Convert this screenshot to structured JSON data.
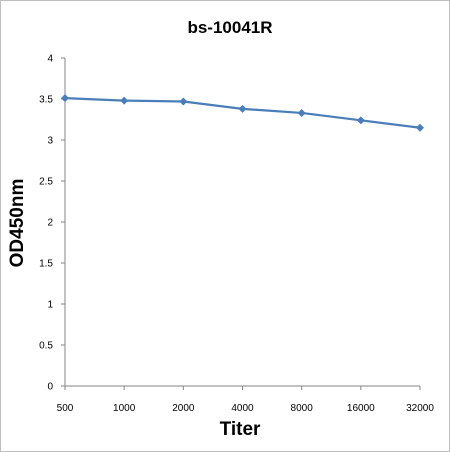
{
  "chart_data": {
    "type": "line",
    "title": "bs-10041R",
    "xlabel": "Titer",
    "ylabel": "OD450nm",
    "categories": [
      "500",
      "1000",
      "2000",
      "4000",
      "8000",
      "16000",
      "32000"
    ],
    "series": [
      {
        "values": [
          3.51,
          3.48,
          3.47,
          3.38,
          3.33,
          3.24,
          3.15
        ],
        "color": "#4a7ebb",
        "marker": "diamond"
      }
    ],
    "yticks": [
      "0",
      "0.5",
      "1",
      "1.5",
      "2",
      "2.5",
      "3",
      "3.5",
      "4"
    ],
    "ylim": [
      0,
      4
    ],
    "grid": false,
    "legend": "none"
  }
}
